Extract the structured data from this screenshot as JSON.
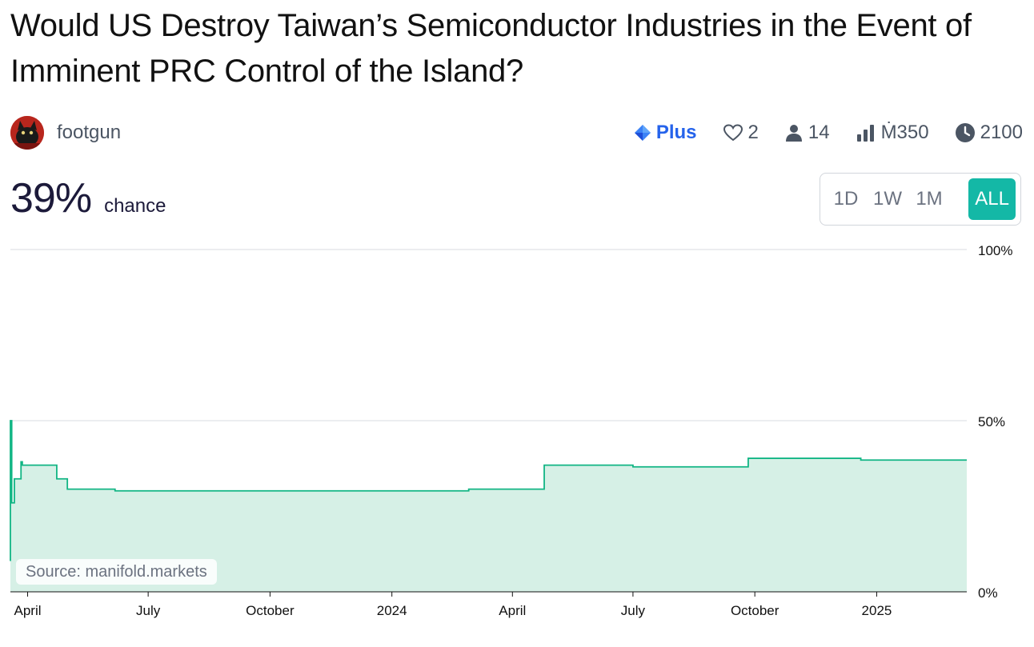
{
  "question": {
    "title": "Would US Destroy Taiwan’s Semiconductor Industries in the Event of Imminent PRC Control of the Island?"
  },
  "creator": {
    "name": "footgun"
  },
  "stats": {
    "tier": "Plus",
    "likes": "2",
    "traders": "14",
    "volume": "Ṁ350",
    "close_year": "2100"
  },
  "probability": {
    "value": "39%",
    "label": "chance"
  },
  "time_ranges": [
    "1D",
    "1W",
    "1M",
    "ALL"
  ],
  "active_range": "ALL",
  "source_label": "Source: manifold.markets",
  "colors": {
    "line": "#11b584",
    "fill": "#d6f0e6",
    "accent": "#14b8a6",
    "plus": "#2563eb"
  },
  "chart_data": {
    "type": "area",
    "step": true,
    "ylim": [
      0,
      100
    ],
    "y_tick_labels": [
      "100%",
      "50%",
      "0%"
    ],
    "y_tick_values": [
      100,
      50,
      0
    ],
    "x_tick_labels": [
      "April",
      "July",
      "October",
      "2024",
      "April",
      "July",
      "October",
      "2025"
    ],
    "x_tick_dates": [
      "2023-04-01",
      "2023-07-01",
      "2023-10-01",
      "2024-01-01",
      "2024-04-01",
      "2024-07-01",
      "2024-10-01",
      "2025-01-01"
    ],
    "x_range": [
      "2023-03-19",
      "2025-03-10"
    ],
    "points": [
      {
        "x": "2023-03-19",
        "y": 9
      },
      {
        "x": "2023-03-19",
        "y": 50
      },
      {
        "x": "2023-03-20",
        "y": 26
      },
      {
        "x": "2023-03-22",
        "y": 33
      },
      {
        "x": "2023-03-27",
        "y": 38
      },
      {
        "x": "2023-03-28",
        "y": 37
      },
      {
        "x": "2023-04-23",
        "y": 33
      },
      {
        "x": "2023-05-01",
        "y": 30
      },
      {
        "x": "2023-06-06",
        "y": 29.5
      },
      {
        "x": "2024-02-28",
        "y": 30
      },
      {
        "x": "2024-04-25",
        "y": 37
      },
      {
        "x": "2024-07-01",
        "y": 36.5
      },
      {
        "x": "2024-09-26",
        "y": 39
      },
      {
        "x": "2024-12-20",
        "y": 38.5
      },
      {
        "x": "2025-03-10",
        "y": 38.5
      }
    ]
  }
}
